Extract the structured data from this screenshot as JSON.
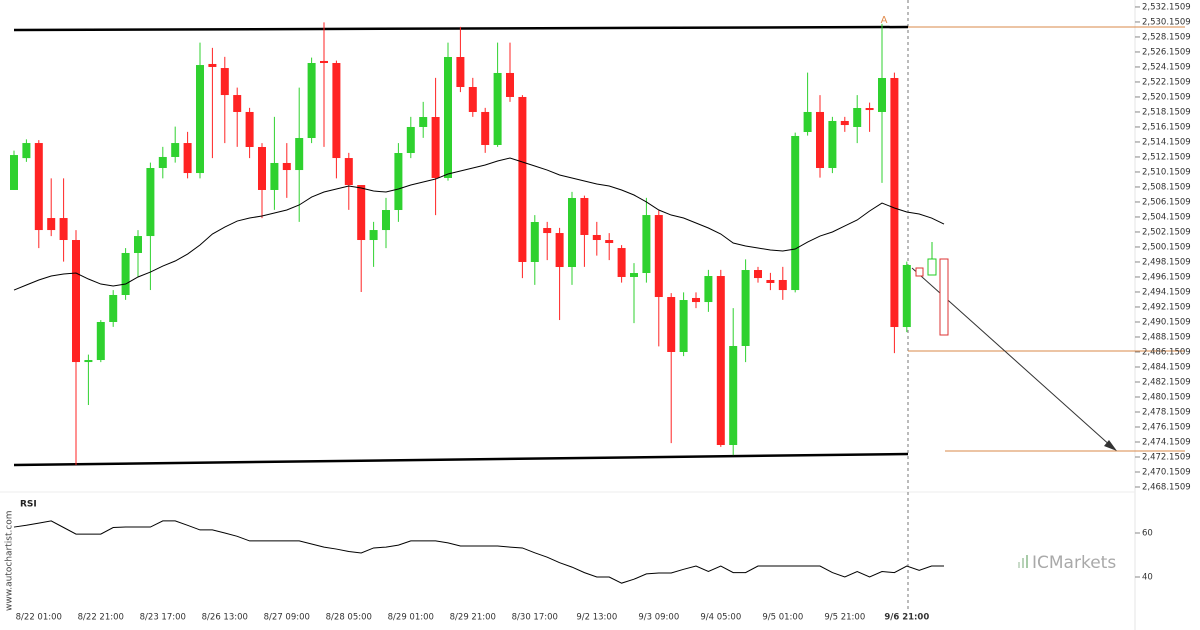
{
  "chart_data": [
    {
      "type": "candlestick",
      "categories": [
        null,
        null,
        "8/22 01:00",
        null,
        null,
        null,
        null,
        "8/22 21:00",
        null,
        null,
        null,
        null,
        "8/23 17:00",
        null,
        null,
        null,
        null,
        "8/26 13:00",
        null,
        null,
        null,
        null,
        "8/27 09:00",
        null,
        null,
        null,
        null,
        "8/28 05:00",
        null,
        null,
        null,
        null,
        "8/29 01:00",
        null,
        null,
        null,
        null,
        "8/29 21:00",
        null,
        null,
        null,
        null,
        "8/30 17:00",
        null,
        null,
        null,
        null,
        "9/2 13:00",
        null,
        null,
        null,
        null,
        "9/3 09:00",
        null,
        null,
        null,
        null,
        "9/4 05:00",
        null,
        null,
        null,
        null,
        "9/5 01:00",
        null,
        null,
        null,
        null,
        "9/5 21:00",
        null,
        null,
        null,
        null,
        "9/6 21:00",
        null,
        null,
        null
      ],
      "ohlc": [
        [
          2507.75,
          2513.0,
          2507.75,
          2512.41
        ],
        [
          2512.0,
          2514.5,
          2511.5,
          2514.01
        ],
        [
          2514.01,
          2514.4,
          2500.0,
          2502.41
        ],
        [
          2504.01,
          2509.3,
          2501.6,
          2502.41
        ],
        [
          2504.01,
          2509.3,
          2498.2,
          2501.08
        ],
        [
          2501.08,
          2502.4,
          2471.08,
          2484.81
        ],
        [
          2484.81,
          2485.8,
          2479.08,
          2485.08
        ],
        [
          2485.08,
          2490.4,
          2484.8,
          2490.15
        ],
        [
          2490.15,
          2494.4,
          2489.5,
          2493.75
        ],
        [
          2493.75,
          2500.0,
          2493.1,
          2499.35
        ],
        [
          2499.35,
          2502.4,
          2496.2,
          2501.61
        ],
        [
          2501.61,
          2511.4,
          2494.41,
          2510.68
        ],
        [
          2510.68,
          2513.5,
          2509.3,
          2512.15
        ],
        [
          2512.15,
          2516.2,
          2511.4,
          2514.01
        ],
        [
          2514.01,
          2515.5,
          2509.3,
          2510.01
        ],
        [
          2510.01,
          2527.4,
          2509.3,
          2524.41
        ],
        [
          2524.55,
          2526.7,
          2512.0,
          2524.15
        ],
        [
          2524.01,
          2525.5,
          2514.0,
          2520.41
        ],
        [
          2520.41,
          2521.4,
          2513.5,
          2518.15
        ],
        [
          2518.15,
          2518.7,
          2512.0,
          2513.48
        ],
        [
          2513.48,
          2514.0,
          2504.0,
          2507.75
        ],
        [
          2507.75,
          2517.5,
          2505.1,
          2511.35
        ],
        [
          2511.35,
          2514.0,
          2506.7,
          2510.41
        ],
        [
          2510.41,
          2521.4,
          2503.5,
          2514.68
        ],
        [
          2514.68,
          2525.4,
          2514.0,
          2524.68
        ],
        [
          2524.95,
          2530.1,
          2513.5,
          2524.68
        ],
        [
          2524.68,
          2525.0,
          2509.3,
          2512.01
        ],
        [
          2512.01,
          2512.7,
          2505.1,
          2508.41
        ],
        [
          2508.41,
          2508.41,
          2494.15,
          2501.08
        ],
        [
          2501.08,
          2503.5,
          2497.5,
          2502.41
        ],
        [
          2502.41,
          2506.7,
          2500.0,
          2505.08
        ],
        [
          2505.08,
          2514.0,
          2503.5,
          2512.68
        ],
        [
          2512.68,
          2517.5,
          2512.0,
          2516.15
        ],
        [
          2516.15,
          2519.5,
          2514.7,
          2517.48
        ],
        [
          2517.48,
          2522.7,
          2504.4,
          2509.35
        ],
        [
          2509.35,
          2527.4,
          2509.0,
          2525.48
        ],
        [
          2525.48,
          2529.5,
          2520.8,
          2521.48
        ],
        [
          2521.48,
          2522.7,
          2517.5,
          2518.15
        ],
        [
          2518.15,
          2518.7,
          2512.7,
          2513.75
        ],
        [
          2513.75,
          2527.4,
          2513.5,
          2523.35
        ],
        [
          2523.35,
          2527.4,
          2519.5,
          2520.15
        ],
        [
          2520.15,
          2520.4,
          2496.0,
          2498.15
        ],
        [
          2498.15,
          2504.4,
          2495.1,
          2503.48
        ],
        [
          2502.68,
          2503.5,
          2498.4,
          2502.01
        ],
        [
          2502.01,
          2502.7,
          2490.41,
          2497.48
        ],
        [
          2497.48,
          2507.5,
          2495.1,
          2506.68
        ],
        [
          2506.68,
          2507.0,
          2497.5,
          2501.75
        ],
        [
          2501.75,
          2503.5,
          2499.0,
          2501.08
        ],
        [
          2501.08,
          2502.0,
          2498.4,
          2500.68
        ],
        [
          2500.01,
          2500.4,
          2495.4,
          2496.15
        ],
        [
          2496.15,
          2498.0,
          2490.0,
          2496.68
        ],
        [
          2496.68,
          2506.7,
          2495.4,
          2504.41
        ],
        [
          2504.41,
          2505.0,
          2486.9,
          2493.48
        ],
        [
          2493.48,
          2494.0,
          2474.0,
          2486.15
        ],
        [
          2486.15,
          2494.1,
          2485.6,
          2493.08
        ],
        [
          2493.35,
          2494.1,
          2492.0,
          2492.81
        ],
        [
          2492.81,
          2497.1,
          2491.5,
          2496.28
        ],
        [
          2496.28,
          2497.1,
          2473.5,
          2473.75
        ],
        [
          2473.75,
          2492.0,
          2472.4,
          2486.95
        ],
        [
          2486.95,
          2498.5,
          2484.8,
          2497.08
        ],
        [
          2497.08,
          2497.5,
          2495.4,
          2496.01
        ],
        [
          2495.75,
          2496.7,
          2494.4,
          2495.35
        ],
        [
          2495.75,
          2497.5,
          2493.1,
          2494.41
        ],
        [
          2494.41,
          2515.4,
          2494.1,
          2514.95
        ],
        [
          2515.48,
          2523.4,
          2515.0,
          2518.15
        ],
        [
          2518.15,
          2520.4,
          2509.4,
          2510.68
        ],
        [
          2510.68,
          2517.5,
          2510.0,
          2516.95
        ],
        [
          2516.95,
          2517.5,
          2515.5,
          2516.41
        ],
        [
          2516.15,
          2520.4,
          2514.0,
          2518.68
        ],
        [
          2518.68,
          2519.4,
          2515.5,
          2518.41
        ],
        [
          2518.15,
          2529.9,
          2508.7,
          2522.68
        ],
        [
          2522.68,
          2523.4,
          2486.0,
          2489.48
        ],
        [
          2489.48,
          2498.2,
          2488.8,
          2497.75
        ],
        null,
        null,
        null
      ],
      "moving_average": [
        2494.41,
        2495.08,
        2495.75,
        2496.28,
        2496.55,
        2496.68,
        2495.88,
        2495.21,
        2494.95,
        2495.21,
        2496.15,
        2496.81,
        2497.61,
        2498.28,
        2499.21,
        2500.41,
        2501.88,
        2502.81,
        2503.61,
        2504.01,
        2504.28,
        2504.68,
        2505.08,
        2505.75,
        2506.81,
        2507.48,
        2507.88,
        2508.28,
        2508.01,
        2507.61,
        2507.48,
        2507.88,
        2508.41,
        2508.81,
        2509.21,
        2509.88,
        2510.28,
        2510.68,
        2511.08,
        2511.61,
        2512.01,
        2511.48,
        2510.95,
        2510.41,
        2509.75,
        2509.35,
        2508.95,
        2508.55,
        2508.28,
        2507.75,
        2507.08,
        2506.15,
        2505.08,
        2504.41,
        2504.01,
        2503.35,
        2502.68,
        2501.88,
        2500.68,
        2500.28,
        2500.01,
        2499.75,
        2499.61,
        2499.88,
        2500.81,
        2501.61,
        2502.15,
        2502.95,
        2503.75,
        2504.95,
        2506.01,
        2505.35,
        2504.81,
        2504.55,
        2504.01,
        2503.21
      ],
      "up_color": "#2fd12f",
      "down_color": "#ff2323",
      "ma_color": "#000000",
      "ylim": [
        2467.75,
        2533.08
      ],
      "yticks": [
        {
          "value": 2468.1509,
          "label": "2,468.1509"
        },
        {
          "value": 2470.1509,
          "label": "2,470.1509"
        },
        {
          "value": 2472.1509,
          "label": "2,472.1509"
        },
        {
          "value": 2474.1509,
          "label": "2,474.1509"
        },
        {
          "value": 2476.1509,
          "label": "2,476.1509"
        },
        {
          "value": 2478.1509,
          "label": "2,478.1509"
        },
        {
          "value": 2480.1509,
          "label": "2,480.1509"
        },
        {
          "value": 2482.1509,
          "label": "2,482.1509"
        },
        {
          "value": 2484.1509,
          "label": "2,484.1509"
        },
        {
          "value": 2486.1509,
          "label": "2,486.1509"
        },
        {
          "value": 2488.1509,
          "label": "2,488.1509"
        },
        {
          "value": 2490.1509,
          "label": "2,490.1509"
        },
        {
          "value": 2492.1509,
          "label": "2,492.1509"
        },
        {
          "value": 2494.1509,
          "label": "2,494.1509"
        },
        {
          "value": 2496.1509,
          "label": "2,496.1509"
        },
        {
          "value": 2498.1509,
          "label": "2,498.1509"
        },
        {
          "value": 2500.1509,
          "label": "2,500.1509"
        },
        {
          "value": 2502.1509,
          "label": "2,502.1509"
        },
        {
          "value": 2504.1509,
          "label": "2,504.1509"
        },
        {
          "value": 2506.1509,
          "label": "2,506.1509"
        },
        {
          "value": 2508.1509,
          "label": "2,508.1509"
        },
        {
          "value": 2510.1509,
          "label": "2,510.1509"
        },
        {
          "value": 2512.1509,
          "label": "2,512.1509"
        },
        {
          "value": 2514.1509,
          "label": "2,514.1509"
        },
        {
          "value": 2516.1509,
          "label": "2,516.1509"
        },
        {
          "value": 2518.1509,
          "label": "2,518.1509"
        },
        {
          "value": 2520.1509,
          "label": "2,520.1509"
        },
        {
          "value": 2522.1509,
          "label": "2,522.1509"
        },
        {
          "value": 2524.1509,
          "label": "2,524.1509"
        },
        {
          "value": 2526.1509,
          "label": "2,526.1509"
        },
        {
          "value": 2528.1509,
          "label": "2,528.1509"
        },
        {
          "value": 2530.1509,
          "label": "2,530.1509"
        },
        {
          "value": 2532.1509,
          "label": "2,532.1509"
        }
      ]
    },
    {
      "type": "line",
      "title": "RSI",
      "values": [
        62.7,
        63.5,
        64.5,
        65.5,
        62.5,
        59.5,
        59.5,
        59.5,
        62.5,
        62.7,
        62.7,
        62.7,
        65.5,
        65.5,
        63.5,
        61.4,
        61.4,
        60,
        58.5,
        56.4,
        56.4,
        56.4,
        56.4,
        56.4,
        55,
        53.6,
        52.7,
        51.6,
        50.9,
        53.2,
        53.6,
        54.5,
        56.4,
        56.4,
        56.4,
        55.5,
        54.1,
        54.1,
        54.1,
        54.1,
        53.6,
        53.2,
        51,
        49,
        46.5,
        44.5,
        42,
        40,
        40,
        37.2,
        39,
        41.4,
        41.8,
        41.8,
        43.5,
        45,
        42.5,
        45,
        42,
        42,
        45,
        45,
        45,
        45,
        45,
        45,
        42,
        40,
        42.5,
        40,
        42.5,
        42,
        45,
        43,
        45,
        45
      ],
      "color": "#000000",
      "ylim": [
        25,
        75
      ],
      "yticks": [
        40,
        60
      ]
    }
  ],
  "watermark": "www.autochartist.com",
  "brand": "ICMarkets",
  "marker": "A"
}
